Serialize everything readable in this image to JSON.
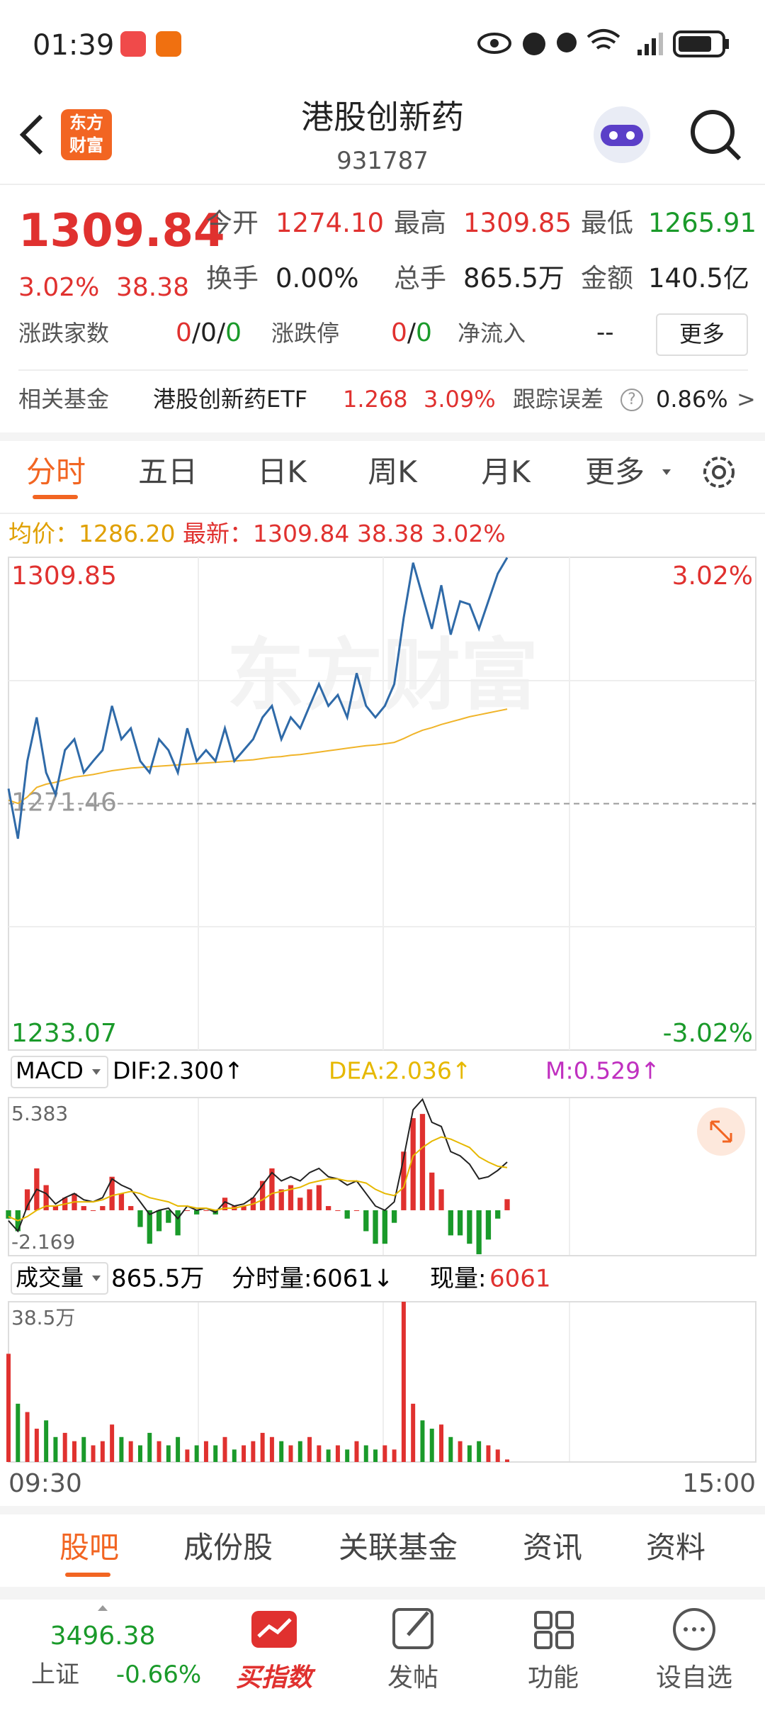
{
  "status_bar": {
    "time": "01:39"
  },
  "header": {
    "title": "港股创新药",
    "code": "931787",
    "logo": [
      "东方",
      "财富"
    ]
  },
  "quote": {
    "price": "1309.84",
    "change_pct": "3.02%",
    "change": "38.38",
    "stats": [
      {
        "label": "今开",
        "value": "1274.10"
      },
      {
        "label": "最高",
        "value": "1309.85"
      },
      {
        "label": "最低",
        "value": "1265.91"
      },
      {
        "label": "换手",
        "value": "0.00%"
      },
      {
        "label": "总手",
        "value": "865.5万"
      },
      {
        "label": "金额",
        "value": "140.5亿"
      }
    ],
    "breadth": {
      "label": "涨跌家数",
      "parts": [
        "0",
        "/",
        "0",
        "/",
        "0"
      ]
    },
    "limit": {
      "label": "涨跌停",
      "parts": [
        "0",
        "/",
        "0"
      ]
    },
    "net_inflow": {
      "label": "净流入",
      "value": "--"
    },
    "more": "更多"
  },
  "fund": {
    "label": "相关基金",
    "name": "港股创新药ETF",
    "price": "1.268",
    "change_pct": "3.09%",
    "tracking_label": "跟踪误差",
    "help": "?",
    "tracking": "0.86%",
    "arrow": ">"
  },
  "tabs": [
    "分时",
    "五日",
    "日K",
    "周K",
    "月K",
    "更多"
  ],
  "info": {
    "avg_label": "均价：",
    "avg": "1286.20",
    "last_label": "最新：",
    "last": "1309.84",
    "change": "38.38",
    "pct": "3.02%"
  },
  "chart_data": [
    {
      "type": "line",
      "watermark": "东方财富",
      "ylim": [
        1233.07,
        1309.85
      ],
      "yticks": [
        1233.07,
        1271.46,
        1309.85
      ],
      "y2lim": [
        -3.02,
        3.02
      ],
      "y2ticks": [
        {
          "value": -3.02,
          "label": "-3.02%"
        },
        {
          "value": 3.02,
          "label": "3.02%"
        }
      ],
      "x_labels": [
        "09:30",
        "15:00"
      ],
      "series": [
        {
          "color": "#2f6aa8",
          "values": [
            1273.8,
            1266.0,
            1278.1,
            1284.9,
            1276.3,
            1272.9,
            1279.8,
            1281.5,
            1276.3,
            1278.1,
            1279.8,
            1286.7,
            1281.5,
            1283.2,
            1278.1,
            1276.3,
            1281.5,
            1279.8,
            1276.3,
            1283.2,
            1278.1,
            1279.8,
            1278.1,
            1283.2,
            1278.1,
            1279.8,
            1281.5,
            1284.9,
            1286.7,
            1281.5,
            1284.9,
            1283.2,
            1286.7,
            1290.1,
            1286.7,
            1288.4,
            1284.9,
            1291.8,
            1286.7,
            1284.9,
            1286.7,
            1290.1,
            1300.4,
            1309.0,
            1303.8,
            1298.7,
            1305.5,
            1297.8,
            1303.0,
            1302.5,
            1298.7,
            1303.0,
            1307.3,
            1309.8
          ]
        },
        {
          "color": "#f0b429",
          "values": [
            1272.0,
            1271.5,
            1272.5,
            1274.0,
            1274.5,
            1274.8,
            1275.2,
            1275.6,
            1275.8,
            1276.0,
            1276.3,
            1276.6,
            1276.8,
            1277.0,
            1277.1,
            1277.2,
            1277.3,
            1277.4,
            1277.5,
            1277.6,
            1277.7,
            1277.8,
            1277.9,
            1278.0,
            1278.1,
            1278.2,
            1278.3,
            1278.5,
            1278.7,
            1278.8,
            1279.0,
            1279.1,
            1279.3,
            1279.5,
            1279.7,
            1279.9,
            1280.1,
            1280.3,
            1280.5,
            1280.6,
            1280.8,
            1281.0,
            1281.6,
            1282.3,
            1282.9,
            1283.3,
            1283.8,
            1284.2,
            1284.6,
            1285.0,
            1285.3,
            1285.6,
            1285.9,
            1286.2
          ]
        }
      ]
    },
    {
      "type": "macd",
      "name": "MACD",
      "dif_label": "DIF:2.300↑",
      "dea_label": "DEA:2.036↑",
      "m_label": "M:0.529↑",
      "ylim": [
        -2.169,
        5.383
      ],
      "yticks": [
        -2.169,
        5.383
      ],
      "bars": {
        "up_color": "#e0312f",
        "down_color": "#1a9a2a",
        "values": [
          -0.4,
          -1.0,
          1.0,
          2.0,
          1.2,
          0.2,
          0.6,
          0.8,
          0.2,
          0,
          0.2,
          1.6,
          0.8,
          0.2,
          -0.8,
          -1.6,
          -1.0,
          -0.6,
          -1.2,
          0,
          -0.2,
          0,
          -0.2,
          0.6,
          0.2,
          0.2,
          0.6,
          1.4,
          2.0,
          1.0,
          1.2,
          0.6,
          1.0,
          1.2,
          0.2,
          0,
          -0.4,
          0,
          -1.0,
          -1.6,
          -1.6,
          -0.6,
          2.8,
          4.4,
          4.6,
          1.8,
          1.0,
          -1.2,
          -1.2,
          -1.6,
          -2.1,
          -1.4,
          -0.4,
          0.529
        ]
      },
      "series": [
        {
          "color": "#222222",
          "values": [
            -0.5,
            -1.0,
            0.2,
            1.0,
            0.8,
            0.3,
            0.6,
            0.8,
            0.5,
            0.4,
            0.6,
            1.5,
            1.2,
            1.0,
            0.4,
            -0.2,
            0.0,
            0.1,
            -0.4,
            0.2,
            0.0,
            0.1,
            -0.1,
            0.4,
            0.2,
            0.3,
            0.6,
            1.2,
            1.8,
            1.4,
            1.6,
            1.4,
            1.8,
            2.0,
            1.6,
            1.5,
            1.2,
            1.4,
            0.8,
            0.2,
            0.0,
            0.4,
            2.5,
            4.8,
            5.3,
            4.2,
            4.0,
            2.8,
            2.6,
            2.2,
            1.5,
            1.6,
            1.9,
            2.3
          ]
        },
        {
          "color": "#e6b800",
          "values": [
            -0.3,
            -0.5,
            -0.3,
            0.0,
            0.2,
            0.2,
            0.3,
            0.4,
            0.4,
            0.4,
            0.5,
            0.7,
            0.8,
            0.9,
            0.8,
            0.6,
            0.5,
            0.4,
            0.2,
            0.2,
            0.1,
            0.1,
            0.0,
            0.1,
            0.1,
            0.2,
            0.3,
            0.5,
            0.8,
            0.9,
            1.0,
            1.1,
            1.3,
            1.4,
            1.5,
            1.5,
            1.4,
            1.4,
            1.3,
            1.0,
            0.8,
            0.7,
            1.1,
            2.6,
            3.0,
            3.3,
            3.5,
            3.4,
            3.2,
            3.0,
            2.55,
            2.3,
            2.1,
            2.036
          ]
        }
      ]
    },
    {
      "type": "bar",
      "name": "成交量",
      "total": "865.5万",
      "tick_label": "分时量:6061↓",
      "now_label": "现量:",
      "now": "6061",
      "ylim": [
        0,
        38.5
      ],
      "yticks": [
        {
          "value": 38.5,
          "label": "38.5万"
        }
      ],
      "up_color": "#e0312f",
      "down_color": "#1a9a2a",
      "values": [
        26,
        14,
        12,
        8,
        10,
        6,
        7,
        5,
        6,
        4,
        5,
        9,
        6,
        5,
        4,
        7,
        5,
        4,
        6,
        3,
        4,
        5,
        4,
        6,
        3,
        4,
        5,
        7,
        6,
        5,
        4,
        5,
        6,
        4,
        3,
        4,
        3,
        5,
        4,
        3,
        4,
        3,
        38.5,
        14,
        10,
        8,
        9,
        6,
        5,
        4,
        5,
        4,
        3,
        0.61
      ]
    }
  ],
  "sub_tabs": [
    "股吧",
    "成份股",
    "关联基金",
    "资讯",
    "资料"
  ],
  "bottom_nav": {
    "index_value": "3496.38",
    "index_name": "上证",
    "index_change": "-0.66%",
    "items": [
      "买指数",
      "发帖",
      "功能",
      "设自选"
    ]
  }
}
